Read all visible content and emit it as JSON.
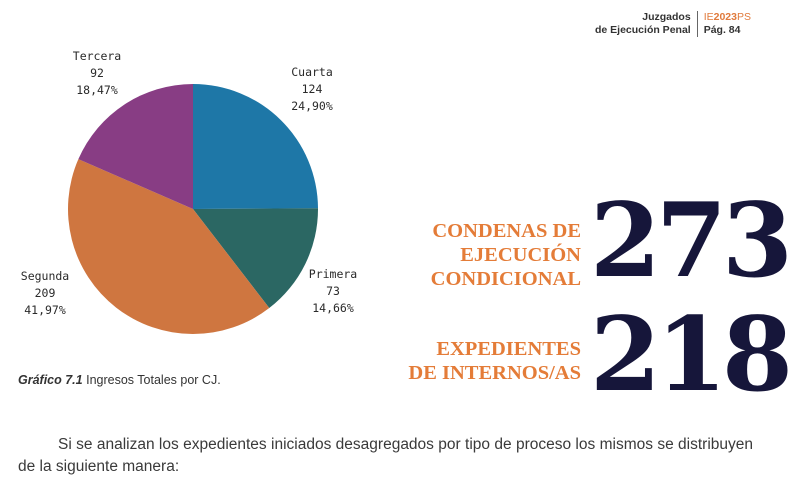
{
  "header": {
    "line1": "Juzgados",
    "line2": "de Ejecución Penal",
    "code_prefix": "IE",
    "code_year": "2023",
    "code_suffix": "PS",
    "page": "Pág. 84"
  },
  "chart_data": {
    "type": "pie",
    "title": "",
    "slices": [
      {
        "name": "Cuarta",
        "value": 124,
        "percent": "24,90%",
        "color": "#1e77a7"
      },
      {
        "name": "Primera",
        "value": 73,
        "percent": "14,66%",
        "color": "#2b6763"
      },
      {
        "name": "Segunda",
        "value": 209,
        "percent": "41,97%",
        "color": "#cf7640"
      },
      {
        "name": "Tercera",
        "value": 92,
        "percent": "18,47%",
        "color": "#883d84"
      }
    ]
  },
  "caption": {
    "number": "Gráfico 7.1",
    "text": "Ingresos Totales por CJ."
  },
  "stats": [
    {
      "lines": [
        "CONDENAS DE",
        "EJECUCIÓN",
        "CONDICIONAL"
      ],
      "value": "273"
    },
    {
      "lines": [
        "EXPEDIENTES",
        "DE INTERNOS/AS"
      ],
      "value": "218"
    }
  ],
  "paragraph": "Si se analizan los expedientes iniciados desagregados por tipo de proceso los mismos se distribuyen de la siguiente manera:"
}
